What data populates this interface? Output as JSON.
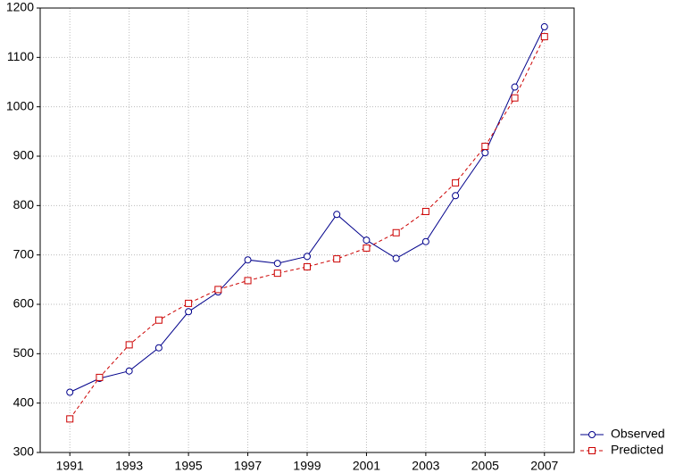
{
  "chart_data": {
    "type": "line",
    "x": [
      1991,
      1992,
      1993,
      1994,
      1995,
      1996,
      1997,
      1998,
      1999,
      2000,
      2001,
      2002,
      2003,
      2004,
      2005,
      2006,
      2007
    ],
    "series": [
      {
        "name": "Observed",
        "color": "#00008b",
        "marker": "circle",
        "dash": false,
        "values": [
          422,
          450,
          465,
          512,
          585,
          625,
          690,
          683,
          697,
          782,
          730,
          693,
          727,
          820,
          907,
          1040,
          1162
        ]
      },
      {
        "name": "Predicted",
        "color": "#cc0000",
        "marker": "square",
        "dash": true,
        "values": [
          368,
          452,
          518,
          568,
          602,
          630,
          648,
          663,
          676,
          692,
          714,
          745,
          788,
          846,
          920,
          1018,
          1142
        ]
      }
    ],
    "xlim": [
      1990,
      2008
    ],
    "xticks": [
      1991,
      1993,
      1995,
      1997,
      1999,
      2001,
      2003,
      2005,
      2007
    ],
    "ylim": [
      300,
      1200
    ],
    "yticks": [
      300,
      400,
      500,
      600,
      700,
      800,
      900,
      1000,
      1100,
      1200
    ],
    "grid": true,
    "legend": "bottom-right-outside"
  }
}
